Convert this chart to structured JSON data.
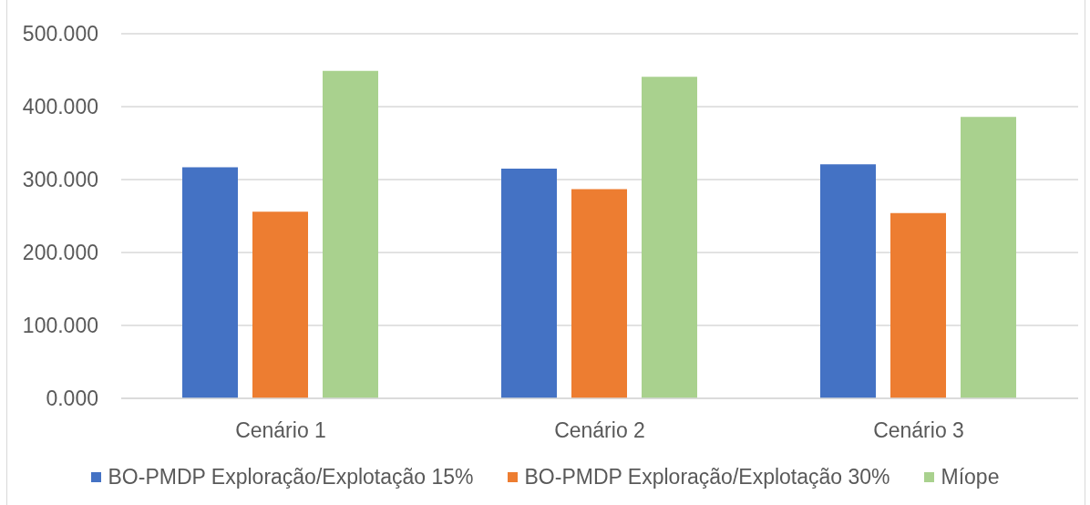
{
  "chart_data": {
    "type": "bar",
    "categories": [
      "Cenário 1",
      "Cenário 2",
      "Cenário 3"
    ],
    "series": [
      {
        "name": "BO-PMDP Exploração/Explotação 15%",
        "color": "#4472c4",
        "values": [
          317,
          315,
          321
        ]
      },
      {
        "name": "BO-PMDP Exploração/Explotação 30%",
        "color": "#ed7d31",
        "values": [
          256,
          287,
          254
        ]
      },
      {
        "name": "Míope",
        "color": "#a9d18e",
        "values": [
          449,
          441,
          386
        ]
      }
    ],
    "ylim": [
      0,
      500
    ],
    "yticks": [
      {
        "value": 0,
        "label": "0.000"
      },
      {
        "value": 100,
        "label": "100.000"
      },
      {
        "value": 200,
        "label": "200.000"
      },
      {
        "value": 300,
        "label": "300.000"
      },
      {
        "value": 400,
        "label": "400.000"
      },
      {
        "value": 500,
        "label": "500.000"
      }
    ],
    "grid": "y",
    "legend": "bottom"
  }
}
